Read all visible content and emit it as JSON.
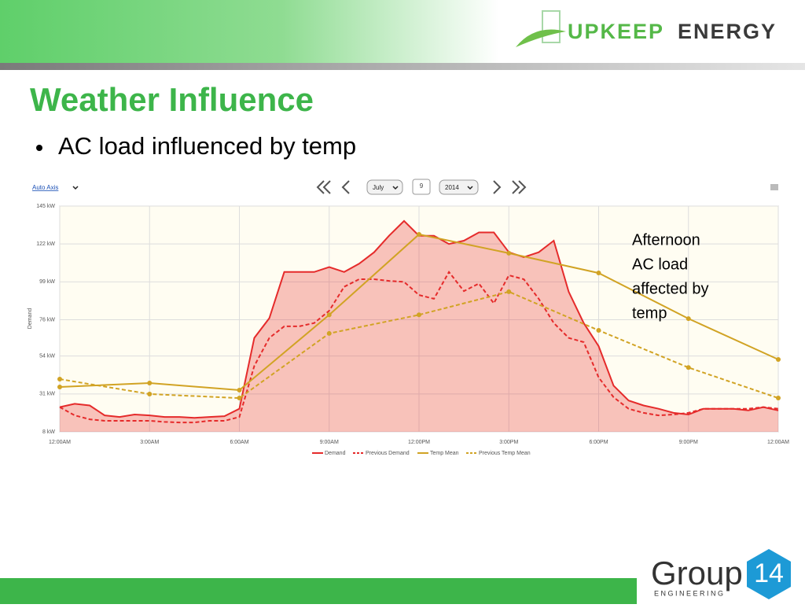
{
  "logo": {
    "left": "UPKEEP",
    "right": "ENERGY"
  },
  "title": "Weather Influence",
  "bullet": "AC load influenced by temp",
  "toolbar": {
    "axis": "Auto Axis",
    "month": "July",
    "day": "9",
    "year": "2014"
  },
  "footer": {
    "brand": "Group",
    "number": "14",
    "tagline": "ENGINEERING"
  },
  "chart_data": {
    "type": "line",
    "ylabel": "Demand",
    "annotation": [
      "Afternoon",
      "AC load",
      "affected by",
      "temp"
    ],
    "xlim": [
      0,
      24
    ],
    "xticks": [
      {
        "value": 0,
        "label": "12:00AM"
      },
      {
        "value": 3,
        "label": "3:00AM"
      },
      {
        "value": 6,
        "label": "6:00AM"
      },
      {
        "value": 9,
        "label": "9:00AM"
      },
      {
        "value": 12,
        "label": "12:00PM"
      },
      {
        "value": 15,
        "label": "3:00PM"
      },
      {
        "value": 18,
        "label": "6:00PM"
      },
      {
        "value": 21,
        "label": "9:00PM"
      },
      {
        "value": 24,
        "label": "12:00AM"
      }
    ],
    "ylim": [
      8,
      145
    ],
    "yticks": [
      {
        "value": 8,
        "label": "8 kW"
      },
      {
        "value": 31,
        "label": "31 kW"
      },
      {
        "value": 54,
        "label": "54 kW"
      },
      {
        "value": 76,
        "label": "76 kW"
      },
      {
        "value": 99,
        "label": "99 kW"
      },
      {
        "value": 122,
        "label": "122 kW"
      },
      {
        "value": 145,
        "label": "145 kW"
      }
    ],
    "grid": true,
    "legend": "bottom",
    "series": [
      {
        "name": "Demand",
        "color": "#e52b2b",
        "style": "solid",
        "area": true,
        "markers": false,
        "x": [
          0,
          0.5,
          1,
          1.5,
          2,
          2.5,
          3,
          3.5,
          4,
          4.5,
          5,
          5.5,
          6,
          6.5,
          7,
          7.5,
          8,
          8.5,
          9,
          9.5,
          10,
          10.5,
          11,
          11.5,
          12,
          12.5,
          13,
          13.5,
          14,
          14.5,
          15,
          15.5,
          16,
          16.5,
          17,
          17.5,
          18,
          18.5,
          19,
          19.5,
          20,
          20.5,
          21,
          21.5,
          22,
          22.5,
          23,
          23.5,
          24
        ],
        "values": [
          23,
          25,
          24,
          18,
          17,
          18.5,
          18,
          17,
          17,
          16.5,
          17,
          17.5,
          22,
          65,
          77,
          105,
          105,
          105,
          108,
          105,
          110,
          117,
          127,
          136,
          127,
          127,
          122,
          124,
          129,
          129,
          117,
          114,
          117,
          124,
          93,
          74,
          60,
          36,
          27,
          24,
          22,
          19.5,
          18.5,
          22,
          22,
          22,
          21,
          23,
          21
        ]
      },
      {
        "name": "Previous Demand",
        "color": "#e52b2b",
        "style": "dashed",
        "area": false,
        "markers": false,
        "x": [
          0,
          0.5,
          1,
          1.5,
          2,
          2.5,
          3,
          3.5,
          4,
          4.5,
          5,
          5.5,
          6,
          6.5,
          7,
          7.5,
          8,
          8.5,
          9,
          9.5,
          10,
          10.5,
          11,
          11.5,
          12,
          12.5,
          13,
          13.5,
          14,
          14.5,
          15,
          15.5,
          16,
          16.5,
          17,
          17.5,
          18,
          18.5,
          19,
          19.5,
          20,
          20.5,
          21,
          21.5,
          22,
          22.5,
          23,
          23.5,
          24
        ],
        "values": [
          23,
          18,
          15.6,
          14.7,
          14.7,
          14.7,
          14.7,
          14,
          13.7,
          13.7,
          14.7,
          14.7,
          17,
          48,
          65,
          72,
          72,
          74,
          81.5,
          96,
          100.6,
          100.6,
          99.6,
          99,
          91,
          88.7,
          105,
          93.4,
          98,
          86,
          103,
          100.6,
          88.7,
          74,
          65,
          62.4,
          41,
          29,
          22,
          19.5,
          18,
          18.5,
          19.5,
          22,
          22,
          22,
          22,
          23,
          22
        ]
      },
      {
        "name": "Temp Mean",
        "color": "#d1a324",
        "style": "solid",
        "area": false,
        "markers": true,
        "x": [
          0,
          3,
          6,
          9,
          12,
          15,
          18,
          21,
          24
        ],
        "values": [
          35.2,
          37.6,
          33.3,
          79,
          127.8,
          116.4,
          104.4,
          76.7,
          51.9
        ]
      },
      {
        "name": "Previous Temp Mean",
        "color": "#d1a324",
        "style": "dashed",
        "area": false,
        "markers": true,
        "x": [
          0,
          3,
          6,
          9,
          12,
          15,
          18,
          21,
          24
        ],
        "values": [
          40,
          30.9,
          28.5,
          67.7,
          79,
          93,
          69.6,
          47,
          28.5
        ]
      }
    ]
  }
}
